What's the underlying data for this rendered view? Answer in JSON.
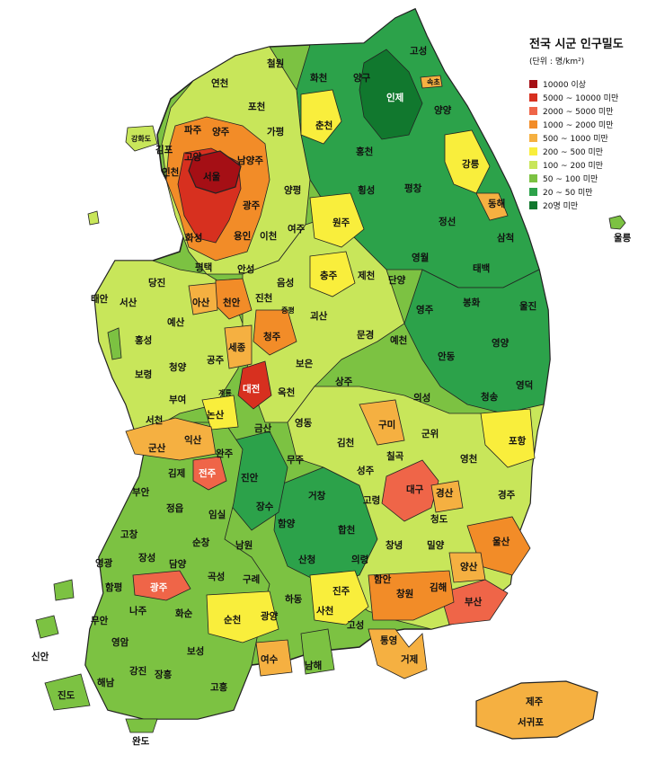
{
  "legend": {
    "title": "전국 시군 인구밀도",
    "unit": "(단위 : 명/km²)",
    "items": [
      {
        "label": "10000 이상",
        "color": "#a50f15"
      },
      {
        "label": "5000 ~ 10000 미만",
        "color": "#d7301f"
      },
      {
        "label": "2000 ~ 5000 미만",
        "color": "#ef6548"
      },
      {
        "label": "1000 ~ 2000 미만",
        "color": "#f28c28"
      },
      {
        "label": "500 ~ 1000 미만",
        "color": "#f5b041"
      },
      {
        "label": "200 ~ 500 미만",
        "color": "#f9ee3c"
      },
      {
        "label": "100 ~ 200 미만",
        "color": "#c8e65a"
      },
      {
        "label": "50 ~ 100 미만",
        "color": "#7cc242"
      },
      {
        "label": "20 ~ 50 미만",
        "color": "#2ca24a"
      },
      {
        "label": "20명 미만",
        "color": "#11782e"
      }
    ]
  },
  "regions": [
    {
      "name": "서울",
      "cat": 0
    },
    {
      "name": "인천",
      "cat": 2
    },
    {
      "name": "김포",
      "cat": 3
    },
    {
      "name": "고양",
      "cat": 2
    },
    {
      "name": "파주",
      "cat": 3
    },
    {
      "name": "양주",
      "cat": 3
    },
    {
      "name": "연천",
      "cat": 7
    },
    {
      "name": "포천",
      "cat": 5
    },
    {
      "name": "철원",
      "cat": 7
    },
    {
      "name": "가평",
      "cat": 7
    },
    {
      "name": "남양주",
      "cat": 3
    },
    {
      "name": "광주",
      "cat": 3
    },
    {
      "name": "양평",
      "cat": 6
    },
    {
      "name": "용인",
      "cat": 3
    },
    {
      "name": "이천",
      "cat": 5
    },
    {
      "name": "여주",
      "cat": 6
    },
    {
      "name": "화성",
      "cat": 3
    },
    {
      "name": "평택",
      "cat": 3
    },
    {
      "name": "안성",
      "cat": 5
    },
    {
      "name": "화천",
      "cat": 8
    },
    {
      "name": "양구",
      "cat": 8
    },
    {
      "name": "인제",
      "cat": 9
    },
    {
      "name": "고성",
      "cat": 8
    },
    {
      "name": "속초",
      "cat": 4
    },
    {
      "name": "양양",
      "cat": 8
    },
    {
      "name": "춘천",
      "cat": 5
    },
    {
      "name": "홍천",
      "cat": 8
    },
    {
      "name": "횡성",
      "cat": 8
    },
    {
      "name": "평창",
      "cat": 8
    },
    {
      "name": "강릉",
      "cat": 5
    },
    {
      "name": "동해",
      "cat": 4
    },
    {
      "name": "원주",
      "cat": 5
    },
    {
      "name": "정선",
      "cat": 8
    },
    {
      "name": "영월",
      "cat": 8
    },
    {
      "name": "삼척",
      "cat": 8
    },
    {
      "name": "태백",
      "cat": 7
    },
    {
      "name": "울릉",
      "cat": 7
    },
    {
      "name": "충주",
      "cat": 5
    },
    {
      "name": "제천",
      "cat": 6
    },
    {
      "name": "음성",
      "cat": 6
    },
    {
      "name": "진천",
      "cat": 6
    },
    {
      "name": "괴산",
      "cat": 7
    },
    {
      "name": "증평",
      "cat": 5
    },
    {
      "name": "단양",
      "cat": 8
    },
    {
      "name": "청주",
      "cat": 3
    },
    {
      "name": "보은",
      "cat": 7
    },
    {
      "name": "옥천",
      "cat": 7
    },
    {
      "name": "영동",
      "cat": 7
    },
    {
      "name": "태안",
      "cat": 7
    },
    {
      "name": "서산",
      "cat": 6
    },
    {
      "name": "당진",
      "cat": 6
    },
    {
      "name": "아산",
      "cat": 4
    },
    {
      "name": "천안",
      "cat": 3
    },
    {
      "name": "예산",
      "cat": 6
    },
    {
      "name": "홍성",
      "cat": 6
    },
    {
      "name": "청양",
      "cat": 7
    },
    {
      "name": "공주",
      "cat": 7
    },
    {
      "name": "세종",
      "cat": 4
    },
    {
      "name": "대전",
      "cat": 1
    },
    {
      "name": "보령",
      "cat": 6
    },
    {
      "name": "부여",
      "cat": 7
    },
    {
      "name": "계룡",
      "cat": 5
    },
    {
      "name": "논산",
      "cat": 5
    },
    {
      "name": "서천",
      "cat": 6
    },
    {
      "name": "금산",
      "cat": 7
    },
    {
      "name": "영주",
      "cat": 6
    },
    {
      "name": "봉화",
      "cat": 8
    },
    {
      "name": "울진",
      "cat": 8
    },
    {
      "name": "문경",
      "cat": 7
    },
    {
      "name": "예천",
      "cat": 7
    },
    {
      "name": "안동",
      "cat": 6
    },
    {
      "name": "영양",
      "cat": 8
    },
    {
      "name": "영덕",
      "cat": 7
    },
    {
      "name": "상주",
      "cat": 7
    },
    {
      "name": "의성",
      "cat": 8
    },
    {
      "name": "청송",
      "cat": 8
    },
    {
      "name": "구미",
      "cat": 4
    },
    {
      "name": "군위",
      "cat": 7
    },
    {
      "name": "김천",
      "cat": 6
    },
    {
      "name": "칠곡",
      "cat": 5
    },
    {
      "name": "포항",
      "cat": 5
    },
    {
      "name": "영천",
      "cat": 6
    },
    {
      "name": "성주",
      "cat": 7
    },
    {
      "name": "고령",
      "cat": 7
    },
    {
      "name": "대구",
      "cat": 2
    },
    {
      "name": "경산",
      "cat": 4
    },
    {
      "name": "경주",
      "cat": 6
    },
    {
      "name": "청도",
      "cat": 7
    },
    {
      "name": "익산",
      "cat": 4
    },
    {
      "name": "군산",
      "cat": 4
    },
    {
      "name": "완주",
      "cat": 6
    },
    {
      "name": "김제",
      "cat": 6
    },
    {
      "name": "전주",
      "cat": 2
    },
    {
      "name": "진안",
      "cat": 8
    },
    {
      "name": "무주",
      "cat": 8
    },
    {
      "name": "부안",
      "cat": 6
    },
    {
      "name": "정읍",
      "cat": 6
    },
    {
      "name": "임실",
      "cat": 7
    },
    {
      "name": "장수",
      "cat": 8
    },
    {
      "name": "고창",
      "cat": 7
    },
    {
      "name": "순창",
      "cat": 7
    },
    {
      "name": "남원",
      "cat": 6
    },
    {
      "name": "거창",
      "cat": 7
    },
    {
      "name": "함양",
      "cat": 7
    },
    {
      "name": "합천",
      "cat": 8
    },
    {
      "name": "영광",
      "cat": 7
    },
    {
      "name": "장성",
      "cat": 7
    },
    {
      "name": "담양",
      "cat": 6
    },
    {
      "name": "곡성",
      "cat": 7
    },
    {
      "name": "구례",
      "cat": 7
    },
    {
      "name": "창녕",
      "cat": 6
    },
    {
      "name": "밀양",
      "cat": 6
    },
    {
      "name": "울산",
      "cat": 3
    },
    {
      "name": "산청",
      "cat": 8
    },
    {
      "name": "의령",
      "cat": 7
    },
    {
      "name": "함안",
      "cat": 5
    },
    {
      "name": "양산",
      "cat": 4
    },
    {
      "name": "함평",
      "cat": 7
    },
    {
      "name": "광주",
      "cat": 2
    },
    {
      "name": "창원",
      "cat": 3
    },
    {
      "name": "김해",
      "cat": 3
    },
    {
      "name": "부산",
      "cat": 2
    },
    {
      "name": "진주",
      "cat": 5
    },
    {
      "name": "하동",
      "cat": 7
    },
    {
      "name": "사천",
      "cat": 5
    },
    {
      "name": "고성",
      "cat": 6
    },
    {
      "name": "나주",
      "cat": 6
    },
    {
      "name": "화순",
      "cat": 7
    },
    {
      "name": "순천",
      "cat": 5
    },
    {
      "name": "광양",
      "cat": 5
    },
    {
      "name": "무안",
      "cat": 6
    },
    {
      "name": "영암",
      "cat": 7
    },
    {
      "name": "보성",
      "cat": 7
    },
    {
      "name": "여수",
      "cat": 4
    },
    {
      "name": "남해",
      "cat": 7
    },
    {
      "name": "통영",
      "cat": 4
    },
    {
      "name": "거제",
      "cat": 4
    },
    {
      "name": "신안",
      "cat": 7
    },
    {
      "name": "해남",
      "cat": 7
    },
    {
      "name": "강진",
      "cat": 7
    },
    {
      "name": "장흥",
      "cat": 7
    },
    {
      "name": "고흥",
      "cat": 7
    },
    {
      "name": "진도",
      "cat": 7
    },
    {
      "name": "완도",
      "cat": 7
    },
    {
      "name": "강화도",
      "cat": 6
    },
    {
      "name": "제주",
      "cat": 4
    },
    {
      "name": "서귀포",
      "cat": 4
    }
  ]
}
